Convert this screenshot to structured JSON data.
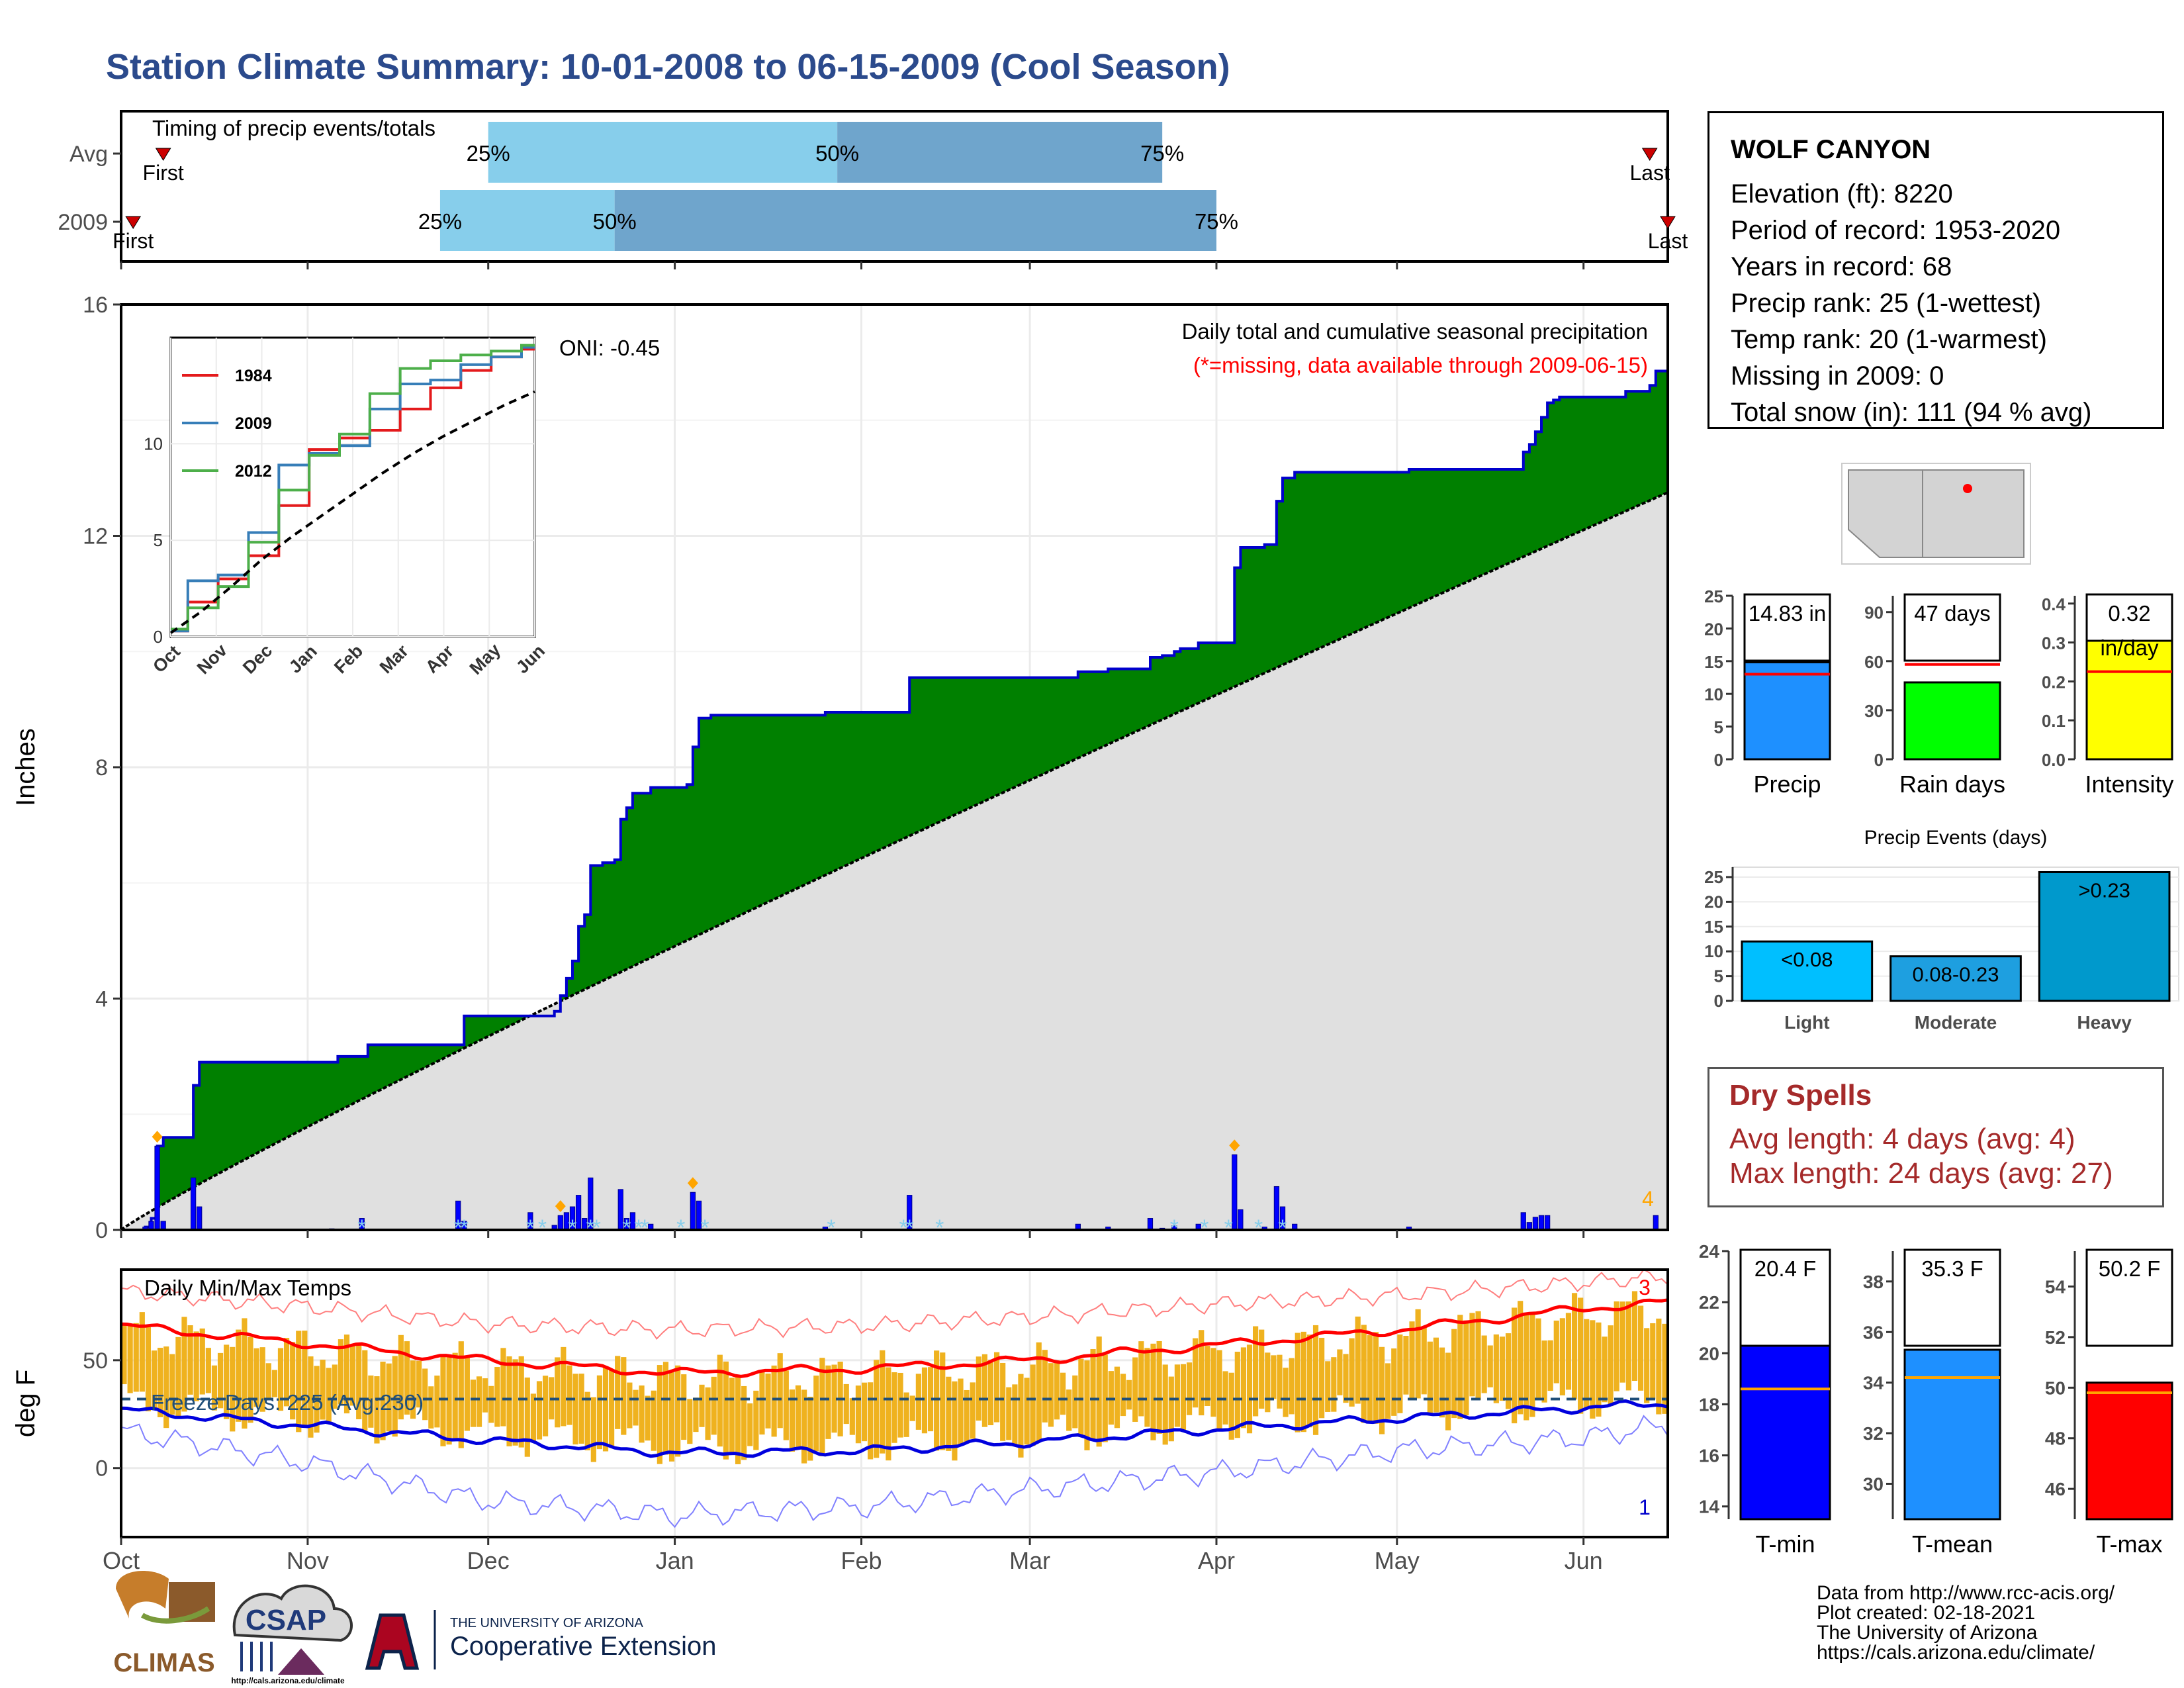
{
  "title": "Station Climate Summary: 10-01-2008 to 06-15-2009 (Cool Season)",
  "station": {
    "name": "WOLF CANYON",
    "lines": [
      "Elevation (ft): 8220",
      "Period of record: 1953-2020",
      "Years in record: 68",
      "Precip rank: 25 (1-wettest)",
      "Temp rank: 20 (1-warmest)",
      "Missing in 2009: 0",
      "Total snow (in): 111 (94 % avg)"
    ]
  },
  "dry_spells": {
    "title": "Dry Spells",
    "avg_length": "Avg length: 4 days (avg: 4)",
    "max_length": "Max length: 24 days (avg: 27)"
  },
  "credits": [
    "Data from http://www.rcc-acis.org/",
    "Plot created: 02-18-2021",
    "The University of Arizona",
    "https://cals.arizona.edu/climate/"
  ],
  "logos": {
    "climas": "CLIMAS",
    "csap": "CSAP",
    "csap_url": "http://cals.arizona.edu/climate",
    "ua_small": "THE UNIVERSITY OF ARIZONA",
    "ua_big": "Cooperative Extension"
  },
  "colors": {
    "cumulative_fill": "#008000",
    "avg_fill": "#e0e0e0",
    "daily_bar": "#0000ff",
    "temp_bar": "#efb21f",
    "tmax_line": "#ff0000",
    "tmin_line": "#0000dd",
    "timing_light": "#87ceeb",
    "timing_dark": "#6fa5cc"
  },
  "chart_data": [
    {
      "id": "timing",
      "type": "bar",
      "title": "Timing of precip events/totals",
      "rows": [
        {
          "label": "Avg",
          "first": "Oct 8",
          "last": "Jun 12",
          "p25": "Dec 1",
          "p50": "Jan 28",
          "p75": "Mar 23",
          "first_label": "First",
          "last_label": "Last"
        },
        {
          "label": "2009",
          "first": "Oct 3",
          "last": "Jun 15",
          "p25": "Nov 23",
          "p50": "Dec 22",
          "p75": "Apr 1",
          "first_label": "First",
          "last_label": "Last"
        }
      ],
      "pct_labels": [
        "25%",
        "50%",
        "75%"
      ],
      "x_range_days": [
        0,
        257
      ]
    },
    {
      "id": "precip",
      "type": "area",
      "title": "Daily total and cumulative seasonal precipitation",
      "subtitle": "(*=missing, data available through 2009-06-15)",
      "oni": "ONI: -0.45",
      "ylabel": "Inches",
      "ylim": [
        0,
        16
      ],
      "yticks": [
        0,
        4,
        8,
        12,
        16
      ],
      "xticks": [
        "Oct",
        "Nov",
        "Dec",
        "Jan",
        "Feb",
        "Mar",
        "Apr",
        "May",
        "Jun"
      ],
      "xtick_days": [
        0,
        31,
        61,
        92,
        123,
        151,
        182,
        212,
        243
      ],
      "season_days": 257,
      "avg_total": 12.75,
      "count_label": "4",
      "cumulative_steps": [
        [
          0,
          0
        ],
        [
          4,
          0.05
        ],
        [
          5,
          0.2
        ],
        [
          6,
          1.45
        ],
        [
          7,
          1.6
        ],
        [
          11,
          1.6
        ],
        [
          12,
          2.5
        ],
        [
          13,
          2.9
        ],
        [
          35,
          2.9
        ],
        [
          36,
          3.0
        ],
        [
          40,
          3.0
        ],
        [
          41,
          3.2
        ],
        [
          56,
          3.2
        ],
        [
          57,
          3.7
        ],
        [
          68,
          3.7
        ],
        [
          72,
          3.78
        ],
        [
          73,
          4.05
        ],
        [
          74,
          4.35
        ],
        [
          75,
          4.65
        ],
        [
          76,
          5.25
        ],
        [
          77,
          5.45
        ],
        [
          78,
          6.3
        ],
        [
          80,
          6.35
        ],
        [
          82,
          6.4
        ],
        [
          83,
          7.1
        ],
        [
          84,
          7.3
        ],
        [
          85,
          7.55
        ],
        [
          88,
          7.65
        ],
        [
          94,
          7.7
        ],
        [
          95,
          8.35
        ],
        [
          96,
          8.85
        ],
        [
          98,
          8.9
        ],
        [
          113,
          8.9
        ],
        [
          117,
          8.95
        ],
        [
          130,
          8.95
        ],
        [
          131,
          9.55
        ],
        [
          158,
          9.55
        ],
        [
          159,
          9.65
        ],
        [
          163,
          9.65
        ],
        [
          164,
          9.7
        ],
        [
          170,
          9.7
        ],
        [
          171,
          9.9
        ],
        [
          173,
          9.93
        ],
        [
          175,
          10.0
        ],
        [
          176,
          10.05
        ],
        [
          178,
          10.05
        ],
        [
          179,
          10.15
        ],
        [
          184,
          10.15
        ],
        [
          185,
          11.45
        ],
        [
          186,
          11.8
        ],
        [
          190,
          11.85
        ],
        [
          192,
          12.6
        ],
        [
          193,
          13.0
        ],
        [
          195,
          13.1
        ],
        [
          213,
          13.1
        ],
        [
          214,
          13.15
        ],
        [
          232,
          13.15
        ],
        [
          233,
          13.45
        ],
        [
          234,
          13.58
        ],
        [
          235,
          13.8
        ],
        [
          236,
          14.05
        ],
        [
          237,
          14.3
        ],
        [
          238,
          14.35
        ],
        [
          239,
          14.4
        ],
        [
          249,
          14.4
        ],
        [
          250,
          14.5
        ],
        [
          253,
          14.5
        ],
        [
          254,
          14.6
        ],
        [
          255,
          14.85
        ],
        [
          257,
          14.85
        ]
      ],
      "daily_bars": [
        [
          4,
          0.05
        ],
        [
          5,
          0.15
        ],
        [
          6,
          1.45
        ],
        [
          7,
          0.15
        ],
        [
          12,
          0.9
        ],
        [
          13,
          0.4
        ],
        [
          35,
          0.02
        ],
        [
          40,
          0.2
        ],
        [
          56,
          0.5
        ],
        [
          57,
          0.15
        ],
        [
          68,
          0.3
        ],
        [
          72,
          0.08
        ],
        [
          73,
          0.25
        ],
        [
          74,
          0.3
        ],
        [
          75,
          0.4
        ],
        [
          76,
          0.6
        ],
        [
          77,
          0.2
        ],
        [
          78,
          0.9
        ],
        [
          83,
          0.7
        ],
        [
          84,
          0.2
        ],
        [
          85,
          0.3
        ],
        [
          88,
          0.1
        ],
        [
          95,
          0.65
        ],
        [
          96,
          0.5
        ],
        [
          117,
          0.05
        ],
        [
          131,
          0.6
        ],
        [
          159,
          0.1
        ],
        [
          164,
          0.05
        ],
        [
          171,
          0.2
        ],
        [
          173,
          0.03
        ],
        [
          175,
          0.07
        ],
        [
          179,
          0.1
        ],
        [
          185,
          1.3
        ],
        [
          186,
          0.35
        ],
        [
          190,
          0.05
        ],
        [
          192,
          0.75
        ],
        [
          193,
          0.4
        ],
        [
          195,
          0.1
        ],
        [
          214,
          0.05
        ],
        [
          233,
          0.3
        ],
        [
          234,
          0.13
        ],
        [
          235,
          0.22
        ],
        [
          236,
          0.25
        ],
        [
          237,
          0.25
        ],
        [
          255,
          0.25
        ]
      ],
      "event_markers": [
        6,
        73,
        95,
        185
      ],
      "missing_markers": [
        40,
        56,
        57,
        68,
        70,
        75,
        78,
        79,
        84,
        86,
        87,
        93,
        97,
        118,
        130,
        131,
        136,
        175,
        180,
        184,
        189,
        193
      ],
      "inset": {
        "type": "line",
        "xticks": [
          "Oct",
          "Nov",
          "Dec",
          "Jan",
          "Feb",
          "Mar",
          "Apr",
          "May",
          "Jun"
        ],
        "yticks": [
          0,
          5,
          10
        ],
        "ylim": [
          0,
          15.5
        ],
        "series": [
          {
            "name": "1984",
            "color": "#e41a1c",
            "values": [
              0.3,
              1.8,
              3.0,
              4.2,
              6.8,
              9.7,
              10.3,
              10.7,
              11.8,
              12.9,
              13.8,
              14.5,
              14.9
            ]
          },
          {
            "name": "2009",
            "color": "#377eb8",
            "values": [
              0.3,
              2.9,
              3.2,
              5.4,
              8.9,
              9.5,
              9.9,
              11.8,
              13.1,
              13.3,
              14.1,
              14.5,
              15.0
            ]
          },
          {
            "name": "2012",
            "color": "#4daf4a",
            "values": [
              0.4,
              1.5,
              2.6,
              4.9,
              7.6,
              9.4,
              10.5,
              12.6,
              13.9,
              14.3,
              14.6,
              14.8,
              15.1
            ]
          },
          {
            "name": "",
            "color": "#000000",
            "values": [
              0.2,
              1.3,
              2.6,
              4.0,
              5.2,
              6.3,
              7.4,
              8.5,
              9.5,
              10.4,
              11.2,
              12.0,
              12.7
            ]
          }
        ]
      }
    },
    {
      "id": "temps",
      "type": "bar",
      "title": "Daily Min/Max Temps",
      "ylabel": "deg F",
      "yticks": [
        0,
        50
      ],
      "ylim": [
        -32,
        92
      ],
      "xticks": [
        "Oct",
        "Nov",
        "Dec",
        "Jan",
        "Feb",
        "Mar",
        "Apr",
        "May",
        "Jun"
      ],
      "freeze_label": "Freeze Days: 225 (Avg:230)",
      "freeze_level": 32,
      "high_count": "3",
      "low_count": "1",
      "avg_tmax": [
        [
          0,
          66
        ],
        [
          30,
          58
        ],
        [
          60,
          50
        ],
        [
          92,
          44
        ],
        [
          123,
          46
        ],
        [
          151,
          50
        ],
        [
          182,
          57
        ],
        [
          212,
          64
        ],
        [
          243,
          74
        ],
        [
          257,
          77
        ]
      ],
      "avg_tmin": [
        [
          0,
          27
        ],
        [
          30,
          20
        ],
        [
          60,
          13
        ],
        [
          92,
          7
        ],
        [
          123,
          8
        ],
        [
          151,
          12
        ],
        [
          182,
          18
        ],
        [
          212,
          23
        ],
        [
          243,
          28
        ],
        [
          257,
          30
        ]
      ],
      "rec_max": [
        [
          0,
          82
        ],
        [
          30,
          75
        ],
        [
          60,
          67
        ],
        [
          92,
          64
        ],
        [
          123,
          66
        ],
        [
          151,
          70
        ],
        [
          182,
          76
        ],
        [
          212,
          80
        ],
        [
          243,
          86
        ],
        [
          257,
          89
        ]
      ],
      "rec_min": [
        [
          0,
          17
        ],
        [
          30,
          3
        ],
        [
          60,
          -15
        ],
        [
          92,
          -22
        ],
        [
          123,
          -18
        ],
        [
          151,
          -10
        ],
        [
          182,
          -2
        ],
        [
          212,
          8
        ],
        [
          243,
          14
        ],
        [
          257,
          20
        ]
      ]
    },
    {
      "id": "precip_summary",
      "type": "bar",
      "panels": [
        {
          "name": "Precip",
          "value": 14.83,
          "label": "14.83 in",
          "avg": 13.0,
          "ylim": [
            0,
            25
          ],
          "yticks": [
            0,
            5,
            10,
            15,
            20,
            25
          ],
          "color": "#1e90ff"
        },
        {
          "name": "Rain days",
          "value": 47,
          "label": "47 days",
          "avg": 58,
          "ylim": [
            0,
            100
          ],
          "yticks": [
            0,
            30,
            60,
            90
          ],
          "color": "#00ff00"
        },
        {
          "name": "Intensity",
          "value": 0.32,
          "label": "0.32",
          "unit_label": "in/day",
          "avg": 0.225,
          "ylim": [
            0,
            0.42
          ],
          "yticks": [
            0.0,
            0.1,
            0.2,
            0.3,
            0.4
          ],
          "color": "#ffff00"
        }
      ]
    },
    {
      "id": "precip_events",
      "type": "bar",
      "title": "Precip Events (days)",
      "categories": [
        "Light",
        "Moderate",
        "Heavy"
      ],
      "bar_labels": [
        "<0.08",
        "0.08-0.23",
        ">0.23"
      ],
      "values": [
        12,
        9,
        26
      ],
      "ylim": [
        0,
        27
      ],
      "yticks": [
        0,
        5,
        10,
        15,
        20,
        25
      ],
      "colors": [
        "#00bfff",
        "#1e9fe0",
        "#0099cc"
      ]
    },
    {
      "id": "temp_summary",
      "type": "bar",
      "panels": [
        {
          "name": "T-min",
          "value": 20.4,
          "label": "20.4 F",
          "avg": 18.6,
          "ylim": [
            13.5,
            24
          ],
          "yticks": [
            14,
            16,
            18,
            20,
            22,
            24
          ],
          "color": "#0000ff"
        },
        {
          "name": "T-mean",
          "value": 35.3,
          "label": "35.3 F",
          "avg": 34.2,
          "ylim": [
            28.6,
            39.2
          ],
          "yticks": [
            30,
            32,
            34,
            36,
            38
          ],
          "color": "#1e90ff"
        },
        {
          "name": "T-max",
          "value": 50.2,
          "label": "50.2 F",
          "avg": 49.8,
          "ylim": [
            44.8,
            55.4
          ],
          "yticks": [
            46,
            48,
            50,
            52,
            54
          ],
          "color": "#ff0000"
        }
      ]
    }
  ]
}
